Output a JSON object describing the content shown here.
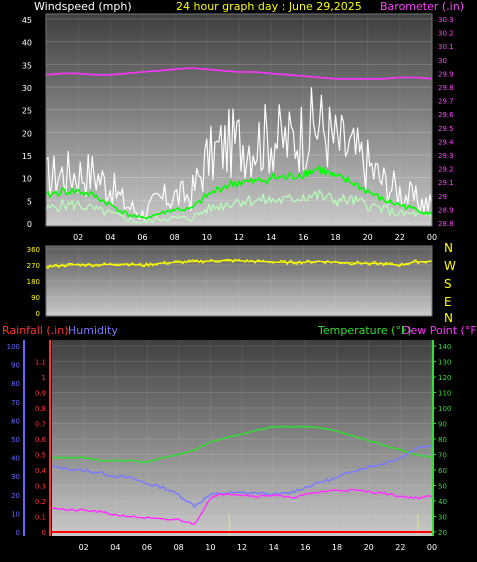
{
  "header": {
    "left_title": "Windspeed (mph)",
    "center_title": "24 hour graph day : June 29,2025",
    "right_title": "Barometer (.in)"
  },
  "colors": {
    "background": "#000000",
    "plot_top": "#4a4a4a",
    "plot_bottom": "#c8c8c8",
    "wind_gust": "#ffffff",
    "wind_avg": "#00ff00",
    "wind_min": "#b8ffb8",
    "barometer": "#ff33ff",
    "direction": "#ffff00",
    "temperature": "#33dd33",
    "humidity": "#7a7aff",
    "dew_point": "#ff33ff",
    "rain": "#ff0000",
    "left_axis_wind": "#ffffff",
    "right_axis_baro": "#ff44ff",
    "rain_axis": "#ff3333",
    "hum_axis": "#6666ff",
    "temp_axis": "#33dd33",
    "marker": "#ffff00"
  },
  "x_ticks": [
    "02",
    "04",
    "06",
    "08",
    "10",
    "12",
    "14",
    "16",
    "18",
    "20",
    "22",
    "00"
  ],
  "panel_wind": {
    "y_ticks": [
      "0",
      "5",
      "10",
      "15",
      "20",
      "25",
      "30",
      "35",
      "40",
      "45"
    ],
    "baro_ticks": [
      "28.8",
      "28.9",
      "29",
      "29.1",
      "29.2",
      "29.3",
      "29.4",
      "29.5",
      "29.6",
      "29.7",
      "29.8",
      "29.9",
      "30",
      "30.1",
      "30.2",
      "30.3"
    ]
  },
  "panel_dir": {
    "y_ticks": [
      "0",
      "90",
      "180",
      "270",
      "360"
    ],
    "compass": [
      "N",
      "W",
      "S",
      "E",
      "N"
    ]
  },
  "panel_climate": {
    "legend_rain": "Rainfall (.in)",
    "legend_humidity": "Humidity",
    "legend_temperature": "Temperature (°F)",
    "legend_dew": "Dew Point (°F)",
    "rain_ticks": [
      "0",
      "0.1",
      "0.2",
      "0.3",
      "0.4",
      "0.5",
      "0.6",
      "0.7",
      "0.8",
      "0.9",
      "1",
      "1.1"
    ],
    "hum_ticks": [
      "0",
      "10",
      "20",
      "30",
      "40",
      "50",
      "60",
      "70",
      "80",
      "90",
      "100"
    ],
    "temp_ticks": [
      "20",
      "30",
      "40",
      "50",
      "60",
      "70",
      "80",
      "90",
      "100",
      "110",
      "120",
      "130",
      "140"
    ]
  },
  "chart_data": [
    {
      "type": "line",
      "x": [
        0,
        1,
        2,
        3,
        4,
        5,
        6,
        7,
        8,
        9,
        10,
        11,
        12,
        13,
        14,
        15,
        16,
        17,
        18,
        19,
        20,
        21,
        22,
        23,
        24
      ],
      "x_tick_labels": [
        "02",
        "04",
        "06",
        "08",
        "10",
        "12",
        "14",
        "16",
        "18",
        "20",
        "22",
        "00"
      ],
      "series": [
        {
          "values": [
            10,
            11,
            11,
            11,
            8,
            4,
            2,
            5,
            6,
            6,
            14,
            17,
            18,
            18,
            19,
            18,
            20,
            22,
            18,
            16,
            13,
            9,
            7,
            5,
            4
          ]
        },
        {
          "values": [
            6,
            7,
            7,
            6,
            4,
            2,
            1,
            2,
            3,
            3,
            6,
            8,
            9,
            9,
            10,
            10,
            11,
            12,
            10,
            9,
            7,
            5,
            4,
            3,
            2
          ]
        },
        {
          "values": [
            3,
            4,
            4,
            3,
            2,
            1,
            0,
            1,
            1,
            1,
            3,
            4,
            5,
            5,
            5,
            5,
            6,
            6,
            5,
            5,
            4,
            3,
            2,
            2,
            1
          ]
        }
      ],
      "ylim": [
        0,
        45
      ],
      "grid": true
    },
    {
      "type": "line",
      "x": [
        0,
        1,
        2,
        3,
        4,
        5,
        6,
        7,
        8,
        9,
        10,
        11,
        12,
        13,
        14,
        15,
        16,
        17,
        18,
        19,
        20,
        21,
        22,
        23,
        24
      ],
      "series": [
        {
          "values": [
            29.89,
            29.9,
            29.9,
            29.89,
            29.89,
            29.9,
            29.91,
            29.92,
            29.93,
            29.94,
            29.93,
            29.92,
            29.91,
            29.91,
            29.9,
            29.89,
            29.88,
            29.87,
            29.86,
            29.86,
            29.86,
            29.86,
            29.87,
            29.87,
            29.86
          ]
        }
      ],
      "ylim": [
        28.8,
        30.3
      ]
    },
    {
      "type": "line",
      "x": [
        0,
        1,
        2,
        3,
        4,
        5,
        6,
        7,
        8,
        9,
        10,
        11,
        12,
        13,
        14,
        15,
        16,
        17,
        18,
        19,
        20,
        21,
        22,
        23,
        24
      ],
      "series": [
        {
          "values": [
            260,
            268,
            272,
            270,
            273,
            276,
            268,
            278,
            285,
            288,
            292,
            294,
            294,
            290,
            288,
            284,
            286,
            290,
            286,
            282,
            280,
            276,
            270,
            288,
            290
          ]
        }
      ],
      "ylim": [
        0,
        360
      ],
      "grid": true
    },
    {
      "type": "line",
      "x": [
        0,
        1,
        2,
        3,
        4,
        5,
        6,
        7,
        8,
        9,
        10,
        11,
        12,
        13,
        14,
        15,
        16,
        17,
        18,
        19,
        20,
        21,
        22,
        23,
        24
      ],
      "x_tick_labels": [
        "02",
        "04",
        "06",
        "08",
        "10",
        "12",
        "14",
        "16",
        "18",
        "20",
        "22",
        "00"
      ],
      "series": [
        {
          "values": [
            68,
            68,
            68,
            66,
            66,
            66,
            65,
            68,
            70,
            73,
            78,
            81,
            83,
            86,
            88,
            88,
            88,
            87,
            85,
            82,
            79,
            76,
            73,
            70,
            68
          ]
        },
        {
          "values": [
            35,
            34,
            33,
            32,
            30,
            29,
            26,
            24,
            20,
            14,
            20,
            21,
            21,
            21,
            20,
            21,
            24,
            27,
            29,
            33,
            35,
            37,
            40,
            45,
            47
          ]
        },
        {
          "values": [
            36,
            34,
            34,
            33,
            31,
            30,
            29,
            28,
            28,
            25,
            42,
            45,
            44,
            43,
            44,
            42,
            44,
            46,
            47,
            47,
            46,
            45,
            43,
            42,
            43
          ]
        },
        {
          "values": [
            0,
            0,
            0,
            0,
            0,
            0,
            0,
            0,
            0,
            0,
            0,
            0,
            0,
            0,
            0,
            0,
            0,
            0,
            0,
            0,
            0,
            0,
            0,
            0,
            0
          ]
        }
      ],
      "ylim": [
        20,
        140
      ],
      "grid": true
    }
  ]
}
